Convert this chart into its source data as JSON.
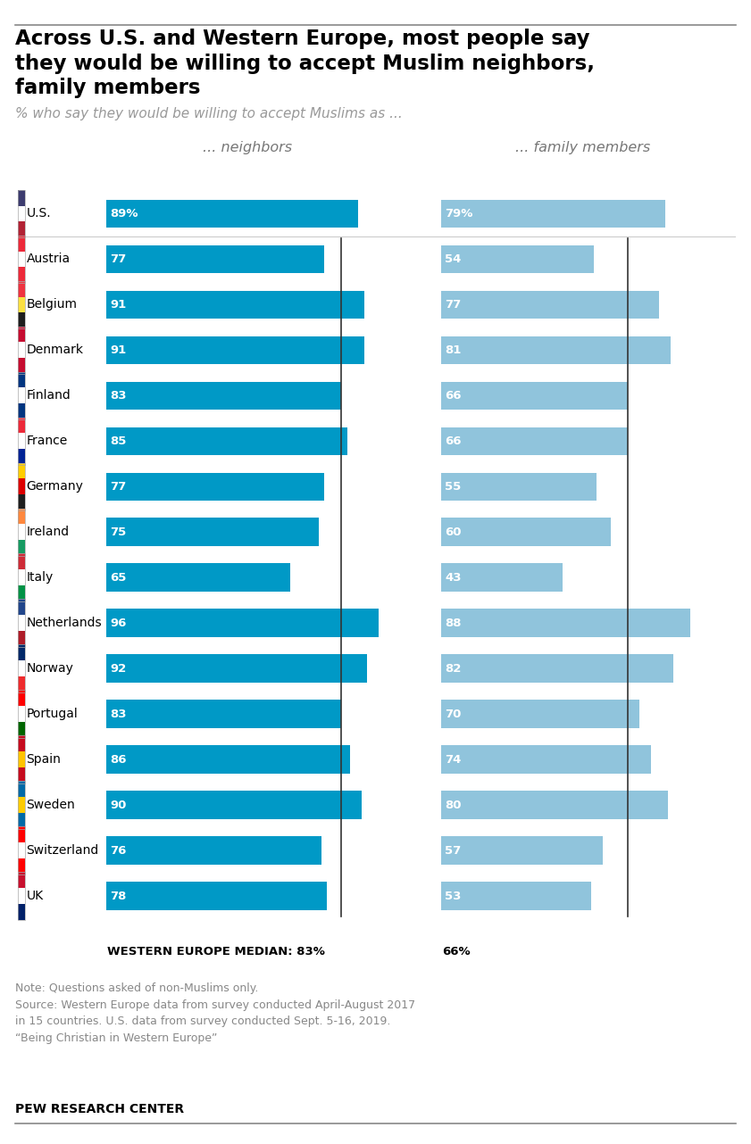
{
  "title": "Across U.S. and Western Europe, most people say\nthey would be willing to accept Muslim neighbors,\nfamily members",
  "subtitle": "% who say they would be willing to accept Muslims as ...",
  "col1_header": "... neighbors",
  "col2_header": "... family members",
  "countries": [
    "U.S.",
    "Austria",
    "Belgium",
    "Denmark",
    "Finland",
    "France",
    "Germany",
    "Ireland",
    "Italy",
    "Netherlands",
    "Norway",
    "Portugal",
    "Spain",
    "Sweden",
    "Switzerland",
    "UK"
  ],
  "neighbors": [
    89,
    77,
    91,
    91,
    83,
    85,
    77,
    75,
    65,
    96,
    92,
    83,
    86,
    90,
    76,
    78
  ],
  "family": [
    79,
    54,
    77,
    81,
    66,
    66,
    55,
    60,
    43,
    88,
    82,
    70,
    74,
    80,
    57,
    53
  ],
  "neighbor_color": "#0099c6",
  "family_color": "#90c4dc",
  "median_neighbors": 83,
  "median_family": 66,
  "median_label": "WESTERN EUROPE MEDIAN: 83%",
  "median_label2": "66%",
  "note_text": "Note: Questions asked of non-Muslims only.\nSource: Western Europe data from survey conducted April-August 2017\nin 15 countries. U.S. data from survey conducted Sept. 5-16, 2019.\n“Being Christian in Western Europe”",
  "source_label": "PEW RESEARCH CENTER",
  "background_color": "#ffffff",
  "bar_height": 0.62,
  "flag_colors": {
    "U.S.": [
      [
        "#B22234",
        "#FFFFFF",
        "#3C3B6E"
      ]
    ],
    "Austria": [
      [
        "#ED2939",
        "#FFFFFF",
        "#ED2939"
      ]
    ],
    "Belgium": [
      [
        "#1E1E1E",
        "#FAE042",
        "#EF3340"
      ]
    ],
    "Denmark": [
      [
        "#C60C30",
        "#FFFFFF",
        "#C60C30"
      ]
    ],
    "Finland": [
      [
        "#FFFFFF",
        "#003580",
        "#FFFFFF"
      ]
    ],
    "France": [
      [
        "#002395",
        "#FFFFFF",
        "#ED2939"
      ]
    ],
    "Germany": [
      [
        "#1E1E1E",
        "#DD0000",
        "#FFCE00"
      ]
    ],
    "Ireland": [
      [
        "#169B62",
        "#FFFFFF",
        "#FF883E"
      ]
    ],
    "Italy": [
      [
        "#009246",
        "#FFFFFF",
        "#CE2B37"
      ]
    ],
    "Netherlands": [
      [
        "#AE1C28",
        "#FFFFFF",
        "#21468B"
      ]
    ],
    "Norway": [
      [
        "#EF2B2D",
        "#FFFFFF",
        "#002868"
      ]
    ],
    "Portugal": [
      [
        "#006600",
        "#FF0000",
        "#FF0000"
      ]
    ],
    "Spain": [
      [
        "#c60b1e",
        "#ffc400",
        "#c60b1e"
      ]
    ],
    "Sweden": [
      [
        "#006AA7",
        "#FECC02",
        "#006AA7"
      ]
    ],
    "Switzerland": [
      [
        "#FF0000",
        "#FFFFFF",
        "#FF0000"
      ]
    ],
    "UK": [
      [
        "#012169",
        "#FFFFFF",
        "#C8102E"
      ]
    ]
  }
}
